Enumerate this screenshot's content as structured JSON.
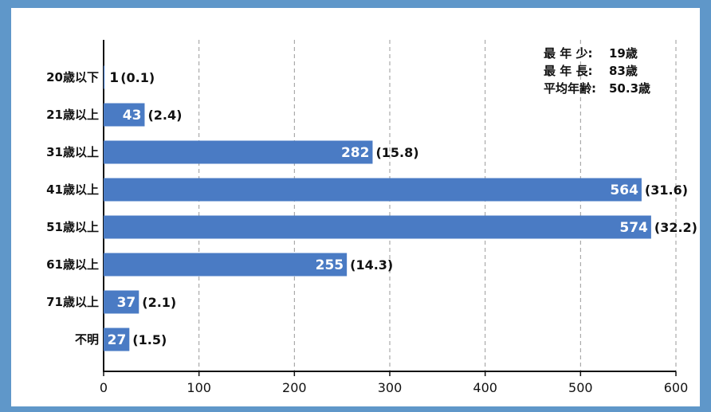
{
  "chart_data": {
    "type": "bar",
    "orientation": "horizontal",
    "categories": [
      "20歳以下",
      "21歳以上",
      "31歳以上",
      "41歳以上",
      "51歳以上",
      "61歳以上",
      "71歳以上",
      "不明"
    ],
    "values": [
      1,
      43,
      282,
      564,
      574,
      255,
      37,
      27
    ],
    "percent_labels": [
      "(0.1)",
      "(2.4)",
      "(15.8)",
      "(31.6)",
      "(32.2)",
      "(14.3)",
      "(2.1)",
      "(1.5)"
    ],
    "xlim": [
      0,
      600
    ],
    "xticks": [
      0,
      100,
      200,
      300,
      400,
      500,
      600
    ],
    "grid": "vertical-dashed",
    "bar_color": "#4a7bc4"
  },
  "stats": [
    {
      "label": "最 年 少:",
      "value": "19歳"
    },
    {
      "label": "最 年 長:",
      "value": "83歳"
    },
    {
      "label": "平均年齢:",
      "value": "50.3歳"
    }
  ]
}
